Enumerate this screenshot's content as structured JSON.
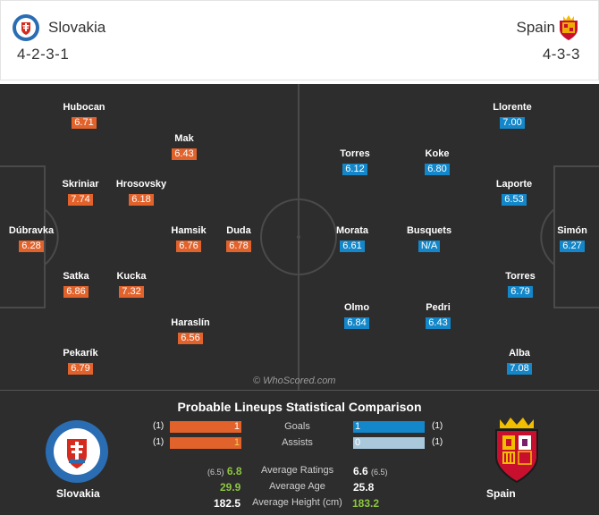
{
  "header": {
    "home": {
      "name": "Slovakia",
      "formation": "4-2-3-1",
      "badge": "slovakia-crest-icon"
    },
    "away": {
      "name": "Spain",
      "formation": "4-3-3",
      "badge": "spain-crest-icon"
    }
  },
  "colors": {
    "home": "#e2622b",
    "away": "#1387c9",
    "pitch": "#2d2d2d",
    "highlight": "#8cc63f"
  },
  "pitch": {
    "watermark": "© WhoScored.com",
    "home_players": [
      {
        "name": "Hubocan",
        "rating": "6.71"
      },
      {
        "name": "Mak",
        "rating": "6.43"
      },
      {
        "name": "Skriniar",
        "rating": "7.74"
      },
      {
        "name": "Hrosovsky",
        "rating": "6.18"
      },
      {
        "name": "Dúbravka",
        "rating": "6.28"
      },
      {
        "name": "Hamsik",
        "rating": "6.76"
      },
      {
        "name": "Duda",
        "rating": "6.78"
      },
      {
        "name": "Satka",
        "rating": "6.86"
      },
      {
        "name": "Kucka",
        "rating": "7.32"
      },
      {
        "name": "Haraslín",
        "rating": "6.56"
      },
      {
        "name": "Pekarík",
        "rating": "6.79"
      }
    ],
    "away_players": [
      {
        "name": "Llorente",
        "rating": "7.00"
      },
      {
        "name": "Torres",
        "rating": "6.12"
      },
      {
        "name": "Koke",
        "rating": "6.80"
      },
      {
        "name": "Laporte",
        "rating": "6.53"
      },
      {
        "name": "Morata",
        "rating": "6.61"
      },
      {
        "name": "Busquets",
        "rating": "N/A"
      },
      {
        "name": "Simón",
        "rating": "6.27"
      },
      {
        "name": "Torres",
        "rating": "6.79"
      },
      {
        "name": "Olmo",
        "rating": "6.84"
      },
      {
        "name": "Pedri",
        "rating": "6.43"
      },
      {
        "name": "Alba",
        "rating": "7.08"
      }
    ]
  },
  "comparison": {
    "title": "Probable Lineups Statistical Comparison",
    "bars": [
      {
        "label": "Goals",
        "home_pre": "(1)",
        "home_value": "1",
        "away_value": "1",
        "away_pre": "(1)",
        "home_fill": 1.0,
        "away_fill": 1.0
      },
      {
        "label": "Assists",
        "home_pre": "(1)",
        "home_value": "1",
        "away_value": "0",
        "away_pre": "(1)",
        "home_fill": 1.0,
        "away_fill": 0.0
      }
    ],
    "rows": [
      {
        "label": "Average Ratings",
        "home_pre": "(6.5)",
        "home_value": "6.8",
        "away_value": "6.6",
        "away_pre": "(6.5)"
      },
      {
        "label": "Average Age",
        "home_value": "29.9",
        "away_value": "25.8"
      },
      {
        "label": "Average Height (cm)",
        "home_value": "182.5",
        "away_value": "183.2"
      }
    ],
    "home_name": "Slovakia",
    "away_name": "Spain"
  }
}
